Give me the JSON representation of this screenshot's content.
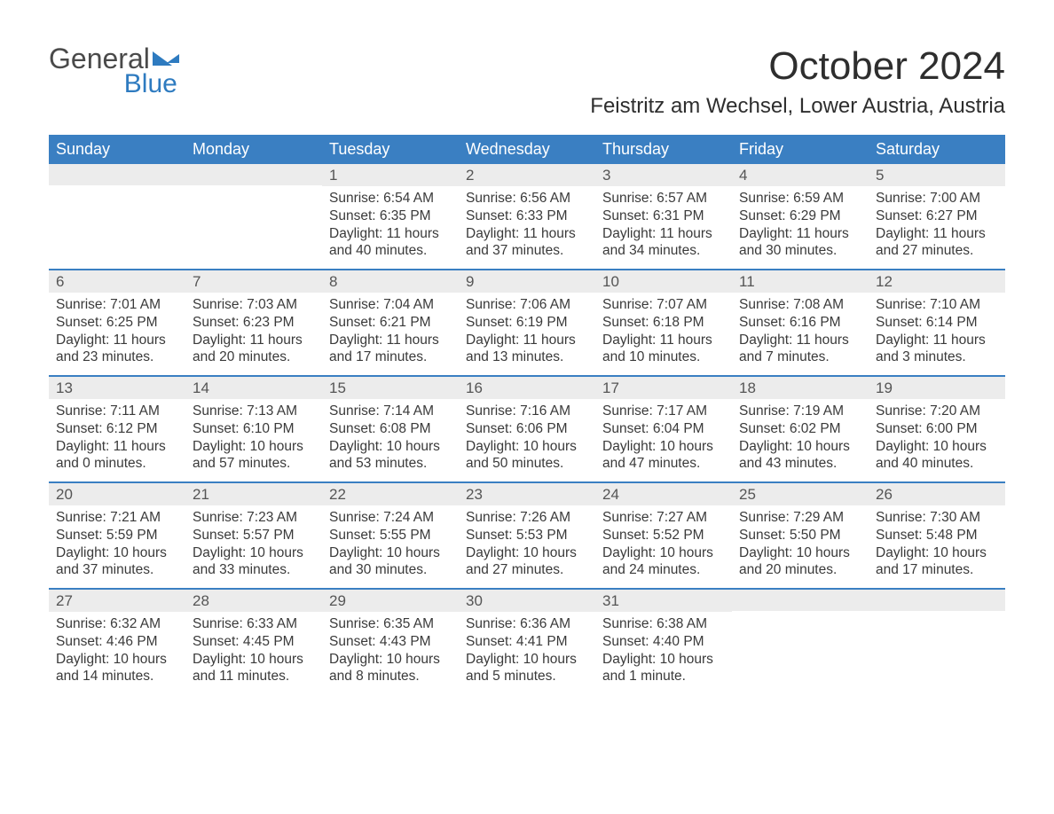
{
  "logo": {
    "text1": "General",
    "text2": "Blue"
  },
  "title": "October 2024",
  "location": "Feistritz am Wechsel, Lower Austria, Austria",
  "colors": {
    "header_bg": "#3a7fc2",
    "header_text": "#ffffff",
    "daynum_bg": "#ececec",
    "week_border": "#3a7fc2",
    "body_text": "#3a3a3a",
    "brand_blue": "#2e7bc0",
    "background": "#ffffff"
  },
  "typography": {
    "title_fontsize": 44,
    "location_fontsize": 24,
    "weekday_fontsize": 18,
    "daynum_fontsize": 17,
    "body_fontsize": 15.5,
    "logo_fontsize": 32
  },
  "weekdays": [
    "Sunday",
    "Monday",
    "Tuesday",
    "Wednesday",
    "Thursday",
    "Friday",
    "Saturday"
  ],
  "weeks": [
    [
      {
        "n": "",
        "sr": "",
        "ss": "",
        "dl": ""
      },
      {
        "n": "",
        "sr": "",
        "ss": "",
        "dl": ""
      },
      {
        "n": "1",
        "sr": "Sunrise: 6:54 AM",
        "ss": "Sunset: 6:35 PM",
        "dl": "Daylight: 11 hours and 40 minutes."
      },
      {
        "n": "2",
        "sr": "Sunrise: 6:56 AM",
        "ss": "Sunset: 6:33 PM",
        "dl": "Daylight: 11 hours and 37 minutes."
      },
      {
        "n": "3",
        "sr": "Sunrise: 6:57 AM",
        "ss": "Sunset: 6:31 PM",
        "dl": "Daylight: 11 hours and 34 minutes."
      },
      {
        "n": "4",
        "sr": "Sunrise: 6:59 AM",
        "ss": "Sunset: 6:29 PM",
        "dl": "Daylight: 11 hours and 30 minutes."
      },
      {
        "n": "5",
        "sr": "Sunrise: 7:00 AM",
        "ss": "Sunset: 6:27 PM",
        "dl": "Daylight: 11 hours and 27 minutes."
      }
    ],
    [
      {
        "n": "6",
        "sr": "Sunrise: 7:01 AM",
        "ss": "Sunset: 6:25 PM",
        "dl": "Daylight: 11 hours and 23 minutes."
      },
      {
        "n": "7",
        "sr": "Sunrise: 7:03 AM",
        "ss": "Sunset: 6:23 PM",
        "dl": "Daylight: 11 hours and 20 minutes."
      },
      {
        "n": "8",
        "sr": "Sunrise: 7:04 AM",
        "ss": "Sunset: 6:21 PM",
        "dl": "Daylight: 11 hours and 17 minutes."
      },
      {
        "n": "9",
        "sr": "Sunrise: 7:06 AM",
        "ss": "Sunset: 6:19 PM",
        "dl": "Daylight: 11 hours and 13 minutes."
      },
      {
        "n": "10",
        "sr": "Sunrise: 7:07 AM",
        "ss": "Sunset: 6:18 PM",
        "dl": "Daylight: 11 hours and 10 minutes."
      },
      {
        "n": "11",
        "sr": "Sunrise: 7:08 AM",
        "ss": "Sunset: 6:16 PM",
        "dl": "Daylight: 11 hours and 7 minutes."
      },
      {
        "n": "12",
        "sr": "Sunrise: 7:10 AM",
        "ss": "Sunset: 6:14 PM",
        "dl": "Daylight: 11 hours and 3 minutes."
      }
    ],
    [
      {
        "n": "13",
        "sr": "Sunrise: 7:11 AM",
        "ss": "Sunset: 6:12 PM",
        "dl": "Daylight: 11 hours and 0 minutes."
      },
      {
        "n": "14",
        "sr": "Sunrise: 7:13 AM",
        "ss": "Sunset: 6:10 PM",
        "dl": "Daylight: 10 hours and 57 minutes."
      },
      {
        "n": "15",
        "sr": "Sunrise: 7:14 AM",
        "ss": "Sunset: 6:08 PM",
        "dl": "Daylight: 10 hours and 53 minutes."
      },
      {
        "n": "16",
        "sr": "Sunrise: 7:16 AM",
        "ss": "Sunset: 6:06 PM",
        "dl": "Daylight: 10 hours and 50 minutes."
      },
      {
        "n": "17",
        "sr": "Sunrise: 7:17 AM",
        "ss": "Sunset: 6:04 PM",
        "dl": "Daylight: 10 hours and 47 minutes."
      },
      {
        "n": "18",
        "sr": "Sunrise: 7:19 AM",
        "ss": "Sunset: 6:02 PM",
        "dl": "Daylight: 10 hours and 43 minutes."
      },
      {
        "n": "19",
        "sr": "Sunrise: 7:20 AM",
        "ss": "Sunset: 6:00 PM",
        "dl": "Daylight: 10 hours and 40 minutes."
      }
    ],
    [
      {
        "n": "20",
        "sr": "Sunrise: 7:21 AM",
        "ss": "Sunset: 5:59 PM",
        "dl": "Daylight: 10 hours and 37 minutes."
      },
      {
        "n": "21",
        "sr": "Sunrise: 7:23 AM",
        "ss": "Sunset: 5:57 PM",
        "dl": "Daylight: 10 hours and 33 minutes."
      },
      {
        "n": "22",
        "sr": "Sunrise: 7:24 AM",
        "ss": "Sunset: 5:55 PM",
        "dl": "Daylight: 10 hours and 30 minutes."
      },
      {
        "n": "23",
        "sr": "Sunrise: 7:26 AM",
        "ss": "Sunset: 5:53 PM",
        "dl": "Daylight: 10 hours and 27 minutes."
      },
      {
        "n": "24",
        "sr": "Sunrise: 7:27 AM",
        "ss": "Sunset: 5:52 PM",
        "dl": "Daylight: 10 hours and 24 minutes."
      },
      {
        "n": "25",
        "sr": "Sunrise: 7:29 AM",
        "ss": "Sunset: 5:50 PM",
        "dl": "Daylight: 10 hours and 20 minutes."
      },
      {
        "n": "26",
        "sr": "Sunrise: 7:30 AM",
        "ss": "Sunset: 5:48 PM",
        "dl": "Daylight: 10 hours and 17 minutes."
      }
    ],
    [
      {
        "n": "27",
        "sr": "Sunrise: 6:32 AM",
        "ss": "Sunset: 4:46 PM",
        "dl": "Daylight: 10 hours and 14 minutes."
      },
      {
        "n": "28",
        "sr": "Sunrise: 6:33 AM",
        "ss": "Sunset: 4:45 PM",
        "dl": "Daylight: 10 hours and 11 minutes."
      },
      {
        "n": "29",
        "sr": "Sunrise: 6:35 AM",
        "ss": "Sunset: 4:43 PM",
        "dl": "Daylight: 10 hours and 8 minutes."
      },
      {
        "n": "30",
        "sr": "Sunrise: 6:36 AM",
        "ss": "Sunset: 4:41 PM",
        "dl": "Daylight: 10 hours and 5 minutes."
      },
      {
        "n": "31",
        "sr": "Sunrise: 6:38 AM",
        "ss": "Sunset: 4:40 PM",
        "dl": "Daylight: 10 hours and 1 minute."
      },
      {
        "n": "",
        "sr": "",
        "ss": "",
        "dl": ""
      },
      {
        "n": "",
        "sr": "",
        "ss": "",
        "dl": ""
      }
    ]
  ]
}
